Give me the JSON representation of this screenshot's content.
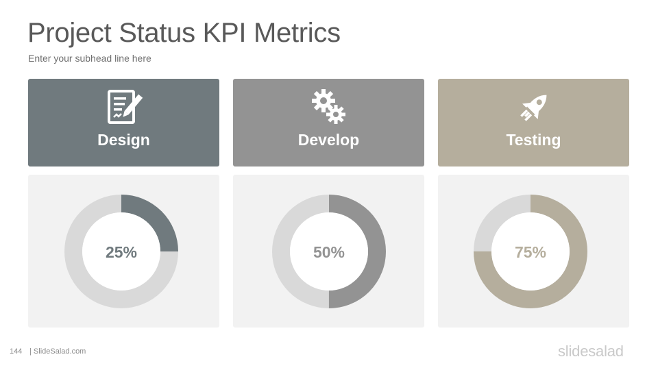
{
  "slide": {
    "title": "Project Status KPI Metrics",
    "subhead": "Enter your subhead line here",
    "page_number": "144",
    "footer_site": "| SlideSalad.com",
    "logo_text": "slidesalad"
  },
  "cards": [
    {
      "label": "Design",
      "icon": "document-pen-icon",
      "color": "#707a7e"
    },
    {
      "label": "Develop",
      "icon": "gears-icon",
      "color": "#939393"
    },
    {
      "label": "Testing",
      "icon": "rocket-icon",
      "color": "#b5ae9d"
    }
  ],
  "colors": {
    "track": "#d9d9d9",
    "card_bg": "#f2f2f2"
  },
  "chart_data": [
    {
      "type": "pie",
      "categories": [
        "Design"
      ],
      "values": [
        25
      ],
      "max": 100,
      "center_label": "25%"
    },
    {
      "type": "pie",
      "categories": [
        "Develop"
      ],
      "values": [
        50
      ],
      "max": 100,
      "center_label": "50%"
    },
    {
      "type": "pie",
      "categories": [
        "Testing"
      ],
      "values": [
        75
      ],
      "max": 100,
      "center_label": "75%"
    }
  ]
}
